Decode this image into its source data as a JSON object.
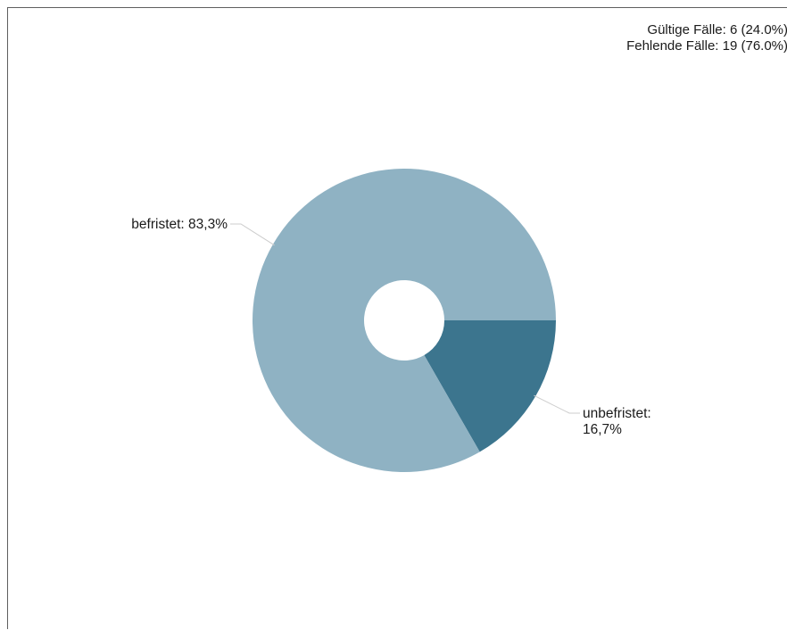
{
  "case_summary": {
    "valid": "Gültige Fälle: 6 (24.0%)",
    "missing": "Fehlende Fälle: 19 (76.0%)"
  },
  "chart_data": {
    "type": "pie",
    "variant": "donut",
    "categories": [
      "unbefristet",
      "befristet"
    ],
    "values": [
      16.7,
      83.3
    ],
    "labels": [
      [
        "unbefristet:",
        "16,7%"
      ],
      [
        "befristet: 83,3%"
      ]
    ],
    "colors": [
      "#3c758e",
      "#8fb2c3"
    ],
    "start": "3 o'clock",
    "direction": "clockwise",
    "legend": "none"
  },
  "colors": {
    "leader_line": "#cccccc",
    "text": "#1a1a1a",
    "frame": "#5f5f5f"
  }
}
